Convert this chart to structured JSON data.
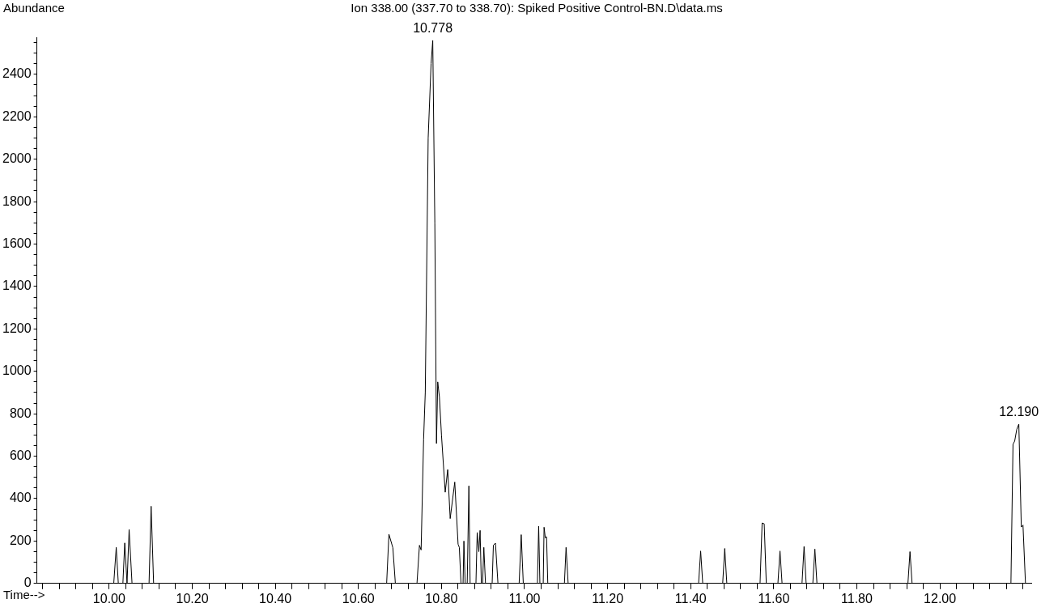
{
  "chart_data": {
    "type": "line",
    "title": "Ion 338.00 (337.70 to 338.70): Spiked Positive Control-BN.D\\data.ms",
    "xlabel": "Time-->",
    "ylabel": "Abundance",
    "x": [
      9.826,
      10.011,
      10.017,
      10.022,
      10.033,
      10.0375,
      10.043,
      10.048,
      10.055,
      10.096,
      10.101,
      10.107,
      10.668,
      10.6735,
      10.683,
      10.689,
      10.741,
      10.747,
      10.751,
      10.757,
      10.761,
      10.768,
      10.775,
      10.779,
      10.784,
      10.788,
      10.791,
      10.795,
      10.8,
      10.809,
      10.815,
      10.821,
      10.832,
      10.84,
      10.843,
      10.847,
      10.852,
      10.854,
      10.857,
      10.862,
      10.866,
      10.869,
      10.883,
      10.886,
      10.89,
      10.893,
      10.896,
      10.899,
      10.902,
      10.906,
      10.922,
      10.925,
      10.93,
      10.936,
      10.987,
      10.992,
      10.997,
      11.031,
      11.034,
      11.037,
      11.045,
      11.047,
      11.05,
      11.053,
      11.056,
      11.096,
      11.1,
      11.105,
      11.419,
      11.424,
      11.429,
      11.477,
      11.482,
      11.487,
      11.567,
      11.572,
      11.577,
      11.582,
      11.61,
      11.615,
      11.62,
      11.668,
      11.673,
      11.678,
      11.694,
      11.699,
      11.704,
      11.923,
      11.928,
      11.933,
      12.171,
      12.176,
      12.18,
      12.185,
      12.19,
      12.196,
      12.2,
      12.206
    ],
    "series": [
      {
        "color": "#000000",
        "values": [
          0,
          0,
          170,
          0,
          0,
          191,
          0,
          254,
          0,
          0,
          364,
          0,
          0,
          232,
          168,
          0,
          0,
          180,
          158,
          680,
          900,
          2100,
          2450,
          2560,
          1700,
          660,
          950,
          880,
          700,
          430,
          537,
          306,
          478,
          185,
          170,
          0,
          0,
          200,
          0,
          0,
          460,
          0,
          0,
          240,
          150,
          250,
          0,
          0,
          170,
          0,
          0,
          180,
          190,
          0,
          0,
          230,
          0,
          0,
          270,
          0,
          0,
          265,
          215,
          220,
          0,
          0,
          170,
          0,
          0,
          153,
          0,
          0,
          165,
          0,
          0,
          285,
          281,
          0,
          0,
          153,
          0,
          0,
          174,
          0,
          0,
          162,
          0,
          0,
          150,
          0,
          0,
          656,
          671,
          726,
          751,
          266,
          275,
          0
        ]
      }
    ],
    "xlim": [
      9.826,
      12.22
    ],
    "xticks": [
      {
        "value": 9.84,
        "label": null
      },
      {
        "value": 9.88,
        "label": null
      },
      {
        "value": 9.92,
        "label": null
      },
      {
        "value": 9.96,
        "label": null
      },
      {
        "value": 10,
        "label": "10.00"
      },
      {
        "value": 10.04,
        "label": null
      },
      {
        "value": 10.08,
        "label": null
      },
      {
        "value": 10.12,
        "label": null
      },
      {
        "value": 10.16,
        "label": null
      },
      {
        "value": 10.2,
        "label": "10.20"
      },
      {
        "value": 10.24,
        "label": null
      },
      {
        "value": 10.28,
        "label": null
      },
      {
        "value": 10.32,
        "label": null
      },
      {
        "value": 10.36,
        "label": null
      },
      {
        "value": 10.4,
        "label": "10.40"
      },
      {
        "value": 10.44,
        "label": null
      },
      {
        "value": 10.48,
        "label": null
      },
      {
        "value": 10.52,
        "label": null
      },
      {
        "value": 10.56,
        "label": null
      },
      {
        "value": 10.6,
        "label": "10.60"
      },
      {
        "value": 10.64,
        "label": null
      },
      {
        "value": 10.68,
        "label": null
      },
      {
        "value": 10.72,
        "label": null
      },
      {
        "value": 10.76,
        "label": null
      },
      {
        "value": 10.8,
        "label": "10.80"
      },
      {
        "value": 10.84,
        "label": null
      },
      {
        "value": 10.88,
        "label": null
      },
      {
        "value": 10.92,
        "label": null
      },
      {
        "value": 10.96,
        "label": null
      },
      {
        "value": 11,
        "label": "11.00"
      },
      {
        "value": 11.04,
        "label": null
      },
      {
        "value": 11.08,
        "label": null
      },
      {
        "value": 11.12,
        "label": null
      },
      {
        "value": 11.16,
        "label": null
      },
      {
        "value": 11.2,
        "label": "11.20"
      },
      {
        "value": 11.24,
        "label": null
      },
      {
        "value": 11.28,
        "label": null
      },
      {
        "value": 11.32,
        "label": null
      },
      {
        "value": 11.36,
        "label": null
      },
      {
        "value": 11.4,
        "label": "11.40"
      },
      {
        "value": 11.44,
        "label": null
      },
      {
        "value": 11.48,
        "label": null
      },
      {
        "value": 11.52,
        "label": null
      },
      {
        "value": 11.56,
        "label": null
      },
      {
        "value": 11.6,
        "label": "11.60"
      },
      {
        "value": 11.64,
        "label": null
      },
      {
        "value": 11.68,
        "label": null
      },
      {
        "value": 11.72,
        "label": null
      },
      {
        "value": 11.76,
        "label": null
      },
      {
        "value": 11.8,
        "label": "11.80"
      },
      {
        "value": 11.84,
        "label": null
      },
      {
        "value": 11.88,
        "label": null
      },
      {
        "value": 11.92,
        "label": null
      },
      {
        "value": 11.96,
        "label": null
      },
      {
        "value": 12,
        "label": "12.00"
      },
      {
        "value": 12.04,
        "label": null
      },
      {
        "value": 12.08,
        "label": null
      },
      {
        "value": 12.12,
        "label": null
      },
      {
        "value": 12.16,
        "label": null
      },
      {
        "value": 12.2,
        "label": null
      }
    ],
    "ylim": [
      0,
      2575
    ],
    "yticks": [
      0,
      {
        "value": 50,
        "label": null
      },
      {
        "value": 100,
        "label": null
      },
      {
        "value": 150,
        "label": null
      },
      200,
      {
        "value": 250,
        "label": null
      },
      {
        "value": 300,
        "label": null
      },
      {
        "value": 350,
        "label": null
      },
      400,
      {
        "value": 450,
        "label": null
      },
      {
        "value": 500,
        "label": null
      },
      {
        "value": 550,
        "label": null
      },
      600,
      {
        "value": 650,
        "label": null
      },
      {
        "value": 700,
        "label": null
      },
      {
        "value": 750,
        "label": null
      },
      800,
      {
        "value": 850,
        "label": null
      },
      {
        "value": 900,
        "label": null
      },
      {
        "value": 950,
        "label": null
      },
      1000,
      {
        "value": 1050,
        "label": null
      },
      {
        "value": 1100,
        "label": null
      },
      {
        "value": 1150,
        "label": null
      },
      1200,
      {
        "value": 1250,
        "label": null
      },
      {
        "value": 1300,
        "label": null
      },
      {
        "value": 1350,
        "label": null
      },
      1400,
      {
        "value": 1450,
        "label": null
      },
      {
        "value": 1500,
        "label": null
      },
      {
        "value": 1550,
        "label": null
      },
      1600,
      {
        "value": 1650,
        "label": null
      },
      {
        "value": 1700,
        "label": null
      },
      {
        "value": 1750,
        "label": null
      },
      1800,
      {
        "value": 1850,
        "label": null
      },
      {
        "value": 1900,
        "label": null
      },
      {
        "value": 1950,
        "label": null
      },
      2000,
      {
        "value": 2050,
        "label": null
      },
      {
        "value": 2100,
        "label": null
      },
      {
        "value": 2150,
        "label": null
      },
      2200,
      {
        "value": 2250,
        "label": null
      },
      {
        "value": 2300,
        "label": null
      },
      {
        "value": 2350,
        "label": null
      },
      2400,
      {
        "value": 2450,
        "label": null
      },
      {
        "value": 2500,
        "label": null
      },
      {
        "value": 2550,
        "label": null
      }
    ],
    "annotations": [
      {
        "text": "10.778",
        "x": 10.779,
        "y": 2560
      },
      {
        "text": "12.190",
        "x": 12.19,
        "y": 751
      }
    ],
    "grid": false,
    "legend": false,
    "marker": "none",
    "line_style": "solid"
  }
}
